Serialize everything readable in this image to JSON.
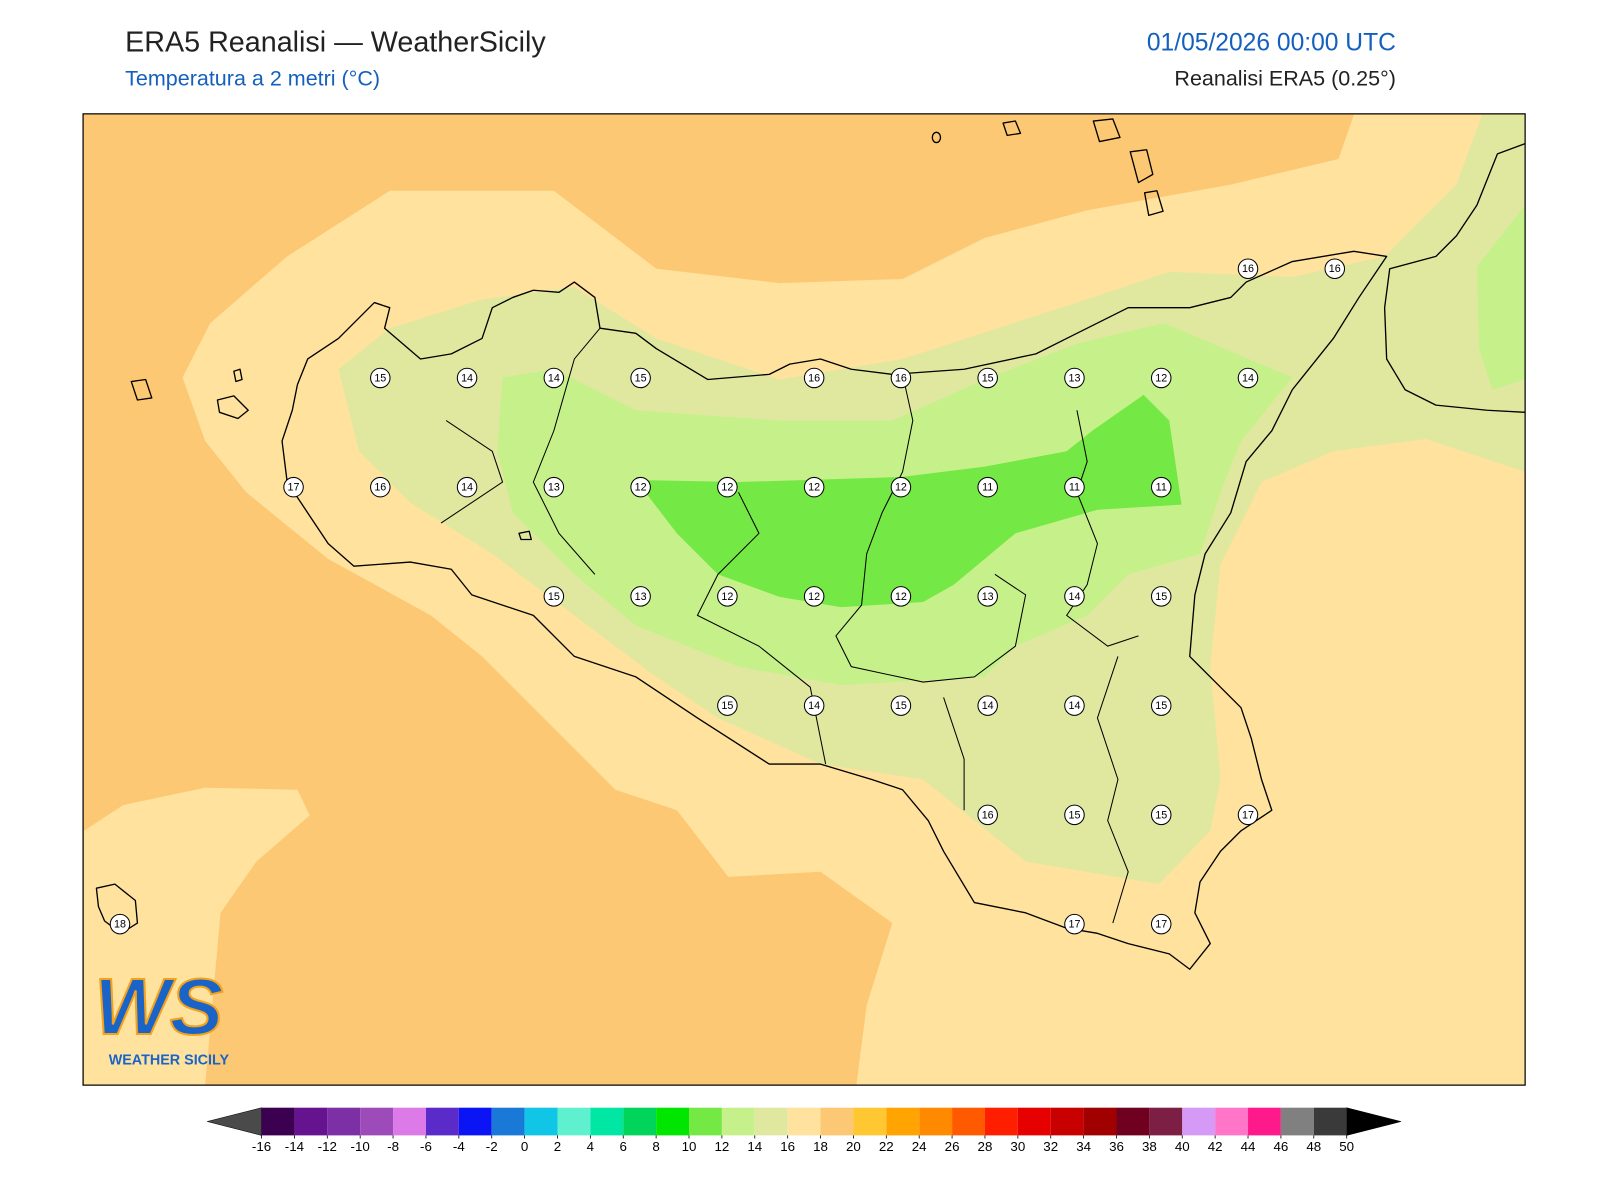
{
  "header": {
    "title": "ERA5 Reanalisi — WeatherSicily",
    "subtitle": "Temperatura a 2 metri (°C)",
    "datetime": "01/05/2026 00:00 UTC",
    "source": "Reanalisi ERA5 (0.25°)"
  },
  "map": {
    "stations": [
      [
        null,
        null,
        null,
        null,
        null,
        null,
        null,
        null,
        null,
        null,
        null,
        null,
        null,
        16,
        16
      ],
      [
        null,
        null,
        null,
        15,
        14,
        14,
        15,
        null,
        16,
        16,
        15,
        13,
        12,
        14,
        null
      ],
      [
        null,
        null,
        17,
        16,
        14,
        13,
        12,
        12,
        12,
        12,
        11,
        11,
        11,
        null,
        null
      ],
      [
        null,
        null,
        null,
        null,
        null,
        15,
        13,
        12,
        12,
        12,
        13,
        14,
        15,
        null,
        null
      ],
      [
        null,
        null,
        null,
        null,
        null,
        null,
        null,
        15,
        14,
        15,
        14,
        14,
        15,
        null,
        null
      ],
      [
        null,
        null,
        null,
        null,
        null,
        null,
        null,
        null,
        null,
        null,
        16,
        15,
        15,
        17,
        null
      ],
      [
        18,
        null,
        null,
        null,
        null,
        null,
        null,
        null,
        null,
        null,
        null,
        17,
        17,
        null,
        null
      ]
    ]
  },
  "colorbar": {
    "ticks": [
      -16,
      -14,
      -12,
      -10,
      -8,
      -6,
      -4,
      -2,
      0,
      2,
      4,
      6,
      8,
      10,
      12,
      14,
      16,
      18,
      20,
      22,
      24,
      26,
      28,
      30,
      32,
      34,
      36,
      38,
      40,
      42,
      44,
      46,
      48,
      50
    ],
    "colors": [
      "#3b0050",
      "#66138f",
      "#7d2fa6",
      "#9c4bb8",
      "#dc7ae8",
      "#5a2bc9",
      "#0a14f5",
      "#1a78d6",
      "#11c5e6",
      "#5ff0d0",
      "#00e6a3",
      "#00d45a",
      "#00e600",
      "#74e844",
      "#c6f08a",
      "#e0e8a0",
      "#fee29e",
      "#fdc874",
      "#ffc832",
      "#ffa400",
      "#ff8a00",
      "#ff5a00",
      "#ff1e00",
      "#e60000",
      "#c80000",
      "#a00000",
      "#700020",
      "#7d1f45",
      "#d59af5",
      "#ff75c8",
      "#ff1a8c",
      "#808080",
      "#3a3a3a"
    ],
    "under": "#4a4a4a",
    "over": "#000000"
  },
  "logo": {
    "mark": "WS",
    "name": "WEATHER SICILY"
  }
}
